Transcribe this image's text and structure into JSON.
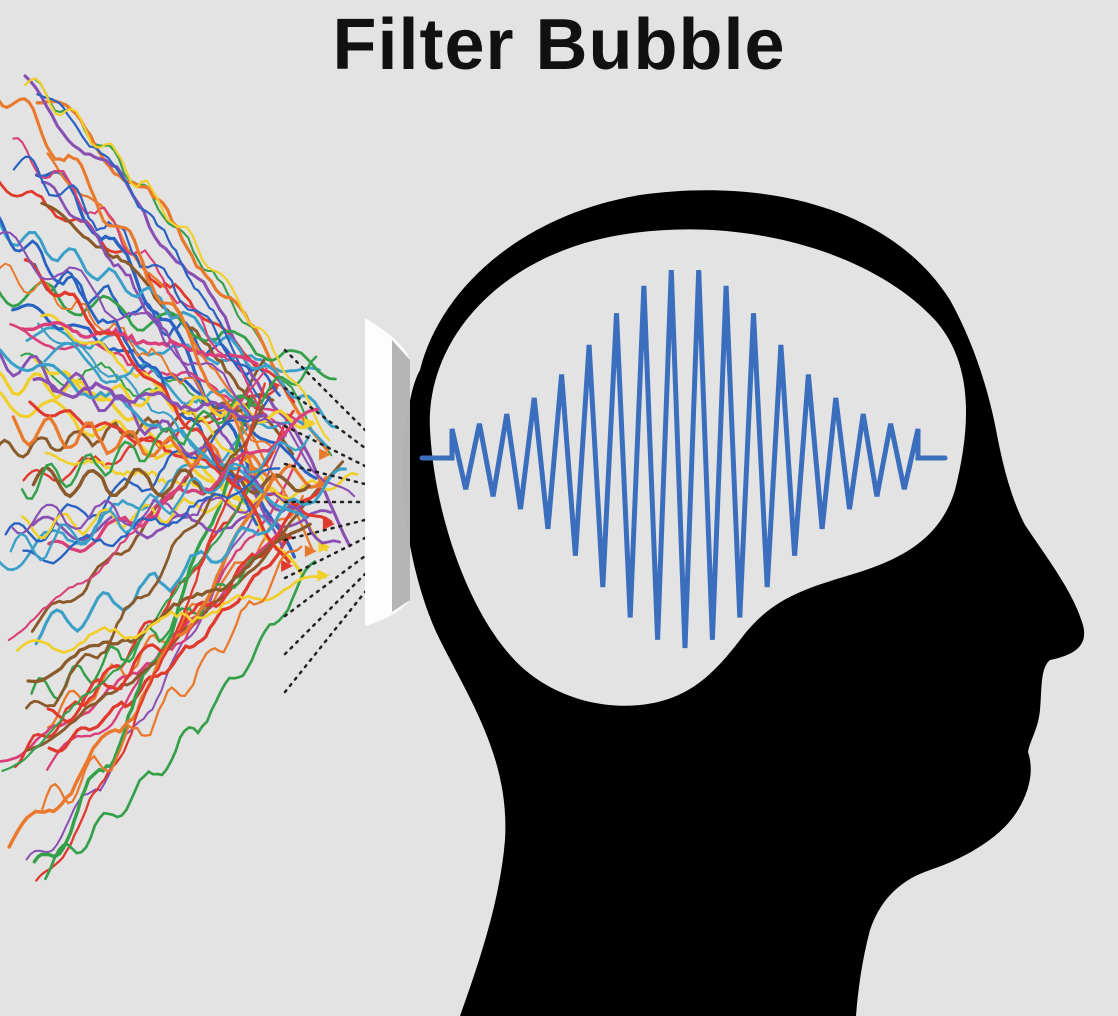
{
  "title": "Filter Bubble",
  "colors": {
    "background": "#e3e3e3",
    "head": "#000000",
    "brain": "#e3e3e3",
    "signal": "#3b6fbe",
    "filter": "#ffffff",
    "streams": [
      "#e03a2f",
      "#2a62c2",
      "#35a04a",
      "#f1cf2b",
      "#8a4fb3",
      "#3aa0c8",
      "#e97a2d",
      "#8b5a2b",
      "#d9407a"
    ]
  },
  "icons": {
    "head": "head-silhouette-icon",
    "filter": "filter-lens-icon",
    "signal": "waveform-icon"
  }
}
